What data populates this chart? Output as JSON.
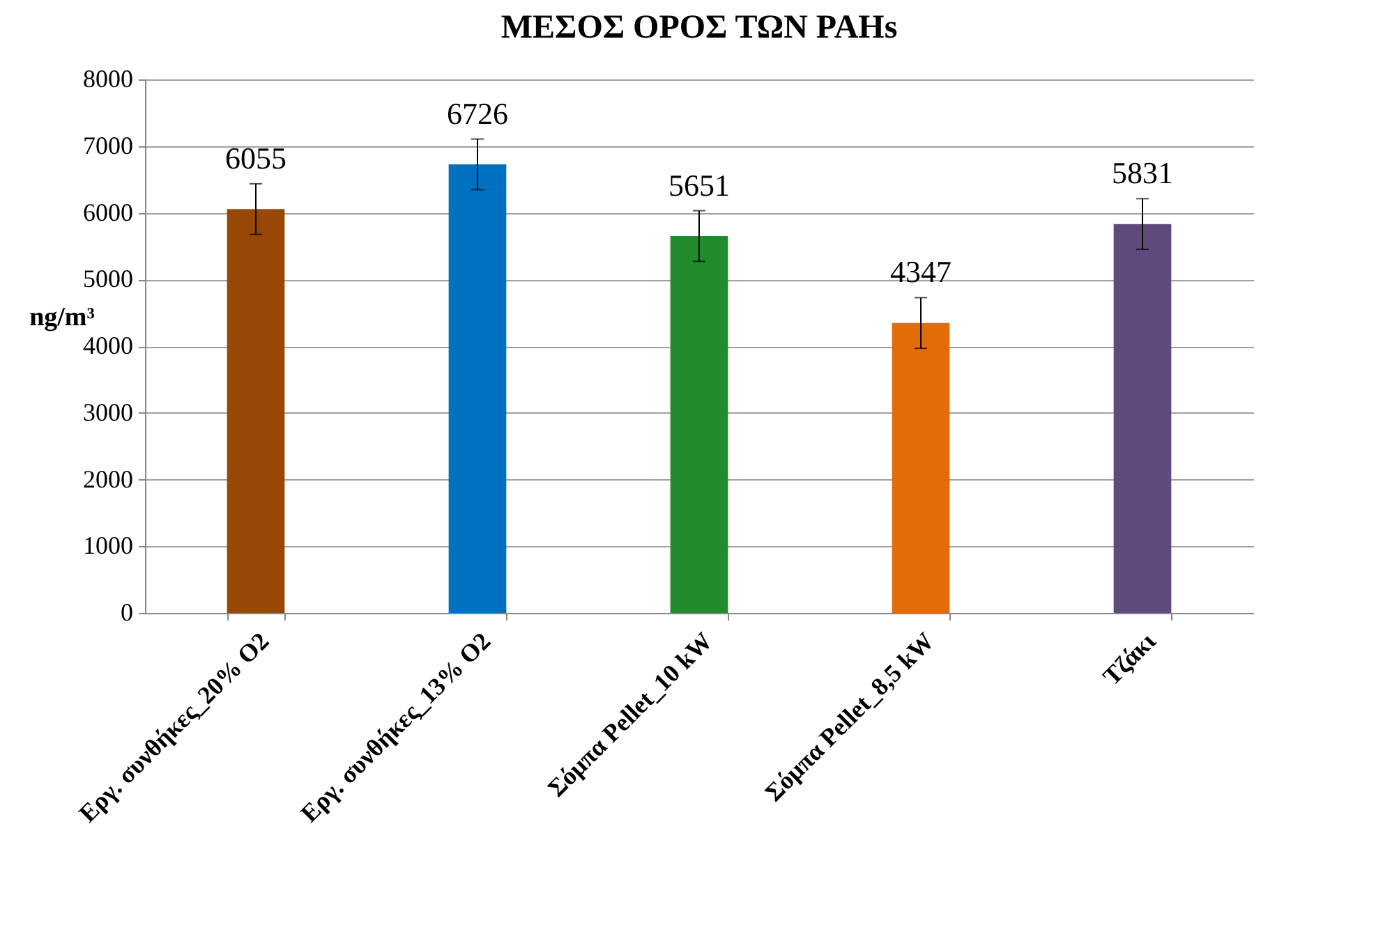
{
  "chart_data": {
    "type": "bar",
    "title": "ΜΕΣΟΣ ΟΡΟΣ ΤΩΝ PAHs",
    "ylabel": "ng/m³",
    "categories": [
      "Εργ. συνθήκες_20% O2",
      "Εργ. συνθήκες_13% O2",
      "Σόμπα Pellet_10 kW",
      "Σόμπα Pellet_8,5 kW",
      "Τζάκι"
    ],
    "values": [
      6055,
      6726,
      5651,
      4347,
      5831
    ],
    "colors": [
      "#974706",
      "#0070c0",
      "#228b2e",
      "#e36c09",
      "#604a7b"
    ],
    "errors": [
      380,
      380,
      380,
      380,
      380
    ],
    "ylim": [
      0,
      8000
    ],
    "yticks": [
      0,
      1000,
      2000,
      3000,
      4000,
      5000,
      6000,
      7000,
      8000
    ],
    "grid": "y",
    "data_labels": true
  }
}
